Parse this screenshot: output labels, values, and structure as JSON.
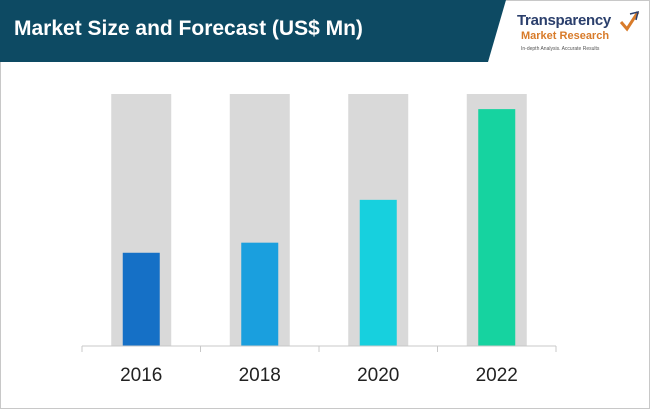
{
  "header": {
    "title": "Market Size and Forecast (US$ Mn)",
    "banner_color": "#0d4a63"
  },
  "logo": {
    "name": "Transparency",
    "subtitle": "Market Research",
    "tagline": "In-depth Analysis. Accurate Results"
  },
  "chart_data": {
    "type": "bar",
    "categories": [
      "2016",
      "2018",
      "2020",
      "2022"
    ],
    "values": [
      37,
      41,
      58,
      94
    ],
    "ylim": [
      0,
      100
    ],
    "colors": [
      "#1570c6",
      "#1a9fde",
      "#17d0de",
      "#16d3a0"
    ],
    "background_bar_color": "#d9d9d9",
    "grid": false,
    "legend": "none"
  }
}
